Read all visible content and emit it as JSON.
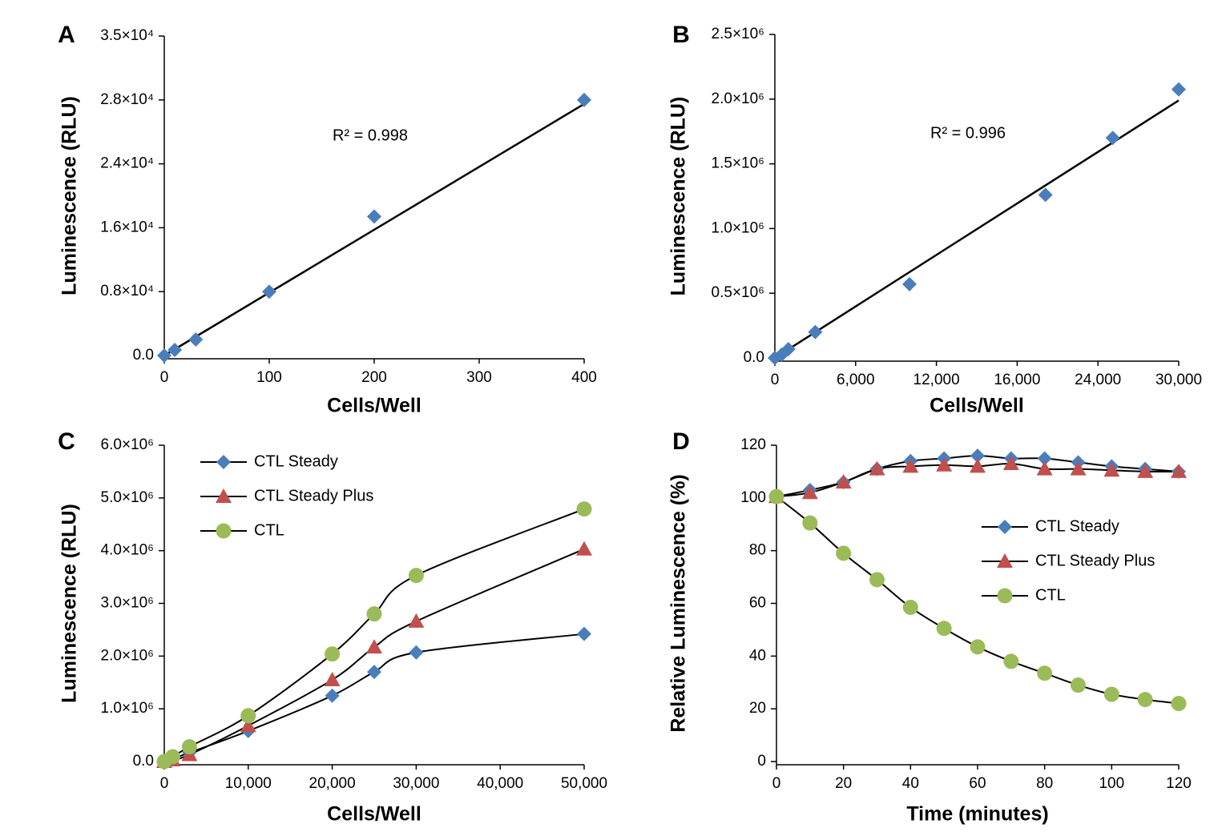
{
  "chart_data": [
    {
      "panel": "A",
      "type": "scatter",
      "xlabel": "Cells/Well",
      "ylabel": "Luminescence (RLU)",
      "annotation": "R² = 0.998",
      "x": [
        0,
        10,
        30,
        100,
        200,
        400
      ],
      "values": [
        0,
        700,
        2000,
        8000,
        17400,
        28000
      ],
      "color": "#4a7ebb",
      "marker": "diamond",
      "trendline": {
        "x": [
          0,
          400
        ],
        "y": [
          0,
          27750
        ],
        "color": "#000000"
      },
      "xlim": [
        0,
        400
      ],
      "xticks": [
        0,
        100,
        200,
        300,
        400
      ],
      "ylim": [
        0,
        35000
      ],
      "yticks": [
        {
          "value": 0,
          "label": "0.0"
        },
        {
          "value": 8000,
          "label": "0.8×10⁴"
        },
        {
          "value": 16000,
          "label": "1.6×10⁴"
        },
        {
          "value": 24000,
          "label": "2.4×10⁴"
        },
        {
          "value": 28000,
          "label": "2.8×10⁴"
        },
        {
          "value": 35000,
          "label": "3.5×10⁴"
        }
      ]
    },
    {
      "panel": "B",
      "type": "scatter",
      "xlabel": "Cells/Well",
      "ylabel": "Luminescence (RLU)",
      "annotation": "R² = 0.996",
      "x": [
        0,
        500,
        1000,
        3000,
        10000,
        18800,
        25100,
        30000
      ],
      "values": [
        0,
        25000,
        68000,
        200000,
        570000,
        1260000,
        1700000,
        2075000
      ],
      "color": "#4a7ebb",
      "marker": "diamond",
      "trendline": {
        "x": [
          0,
          30000
        ],
        "y": [
          0,
          1990000
        ],
        "color": "#000000"
      },
      "xlim": [
        0,
        30000
      ],
      "xticks": [
        0,
        {
          "value": 6000,
          "label": "6,000"
        },
        {
          "value": 12000,
          "label": "12,000"
        },
        {
          "value": 16000,
          "label": "16,000"
        },
        {
          "value": 24000,
          "label": "24,000"
        },
        {
          "value": 30000,
          "label": "30,000"
        }
      ],
      "ylim": [
        0,
        2500000
      ],
      "yticks": [
        {
          "value": 0,
          "label": "0.0"
        },
        {
          "value": 500000,
          "label": "0.5×10⁶"
        },
        {
          "value": 1000000,
          "label": "1.0×10⁶"
        },
        {
          "value": 1500000,
          "label": "1.5×10⁶"
        },
        {
          "value": 2000000,
          "label": "2.0×10⁶"
        },
        {
          "value": 2500000,
          "label": "2.5×10⁶"
        }
      ]
    },
    {
      "panel": "C",
      "type": "line",
      "smooth": true,
      "legend": "upper left",
      "xlabel": "Cells/Well",
      "ylabel": "Luminescence (RLU)",
      "x": [
        0,
        1000,
        3000,
        10000,
        20000,
        25000,
        30000,
        50000
      ],
      "series": [
        {
          "name": "CTL Steady",
          "color": "#4a7ebb",
          "marker": "diamond",
          "values": [
            0,
            50000,
            170000,
            580000,
            1250000,
            1700000,
            2070000,
            2420000
          ]
        },
        {
          "name": "CTL Steady Plus",
          "color": "#c0504d",
          "marker": "triangle",
          "values": [
            0,
            30000,
            130000,
            680000,
            1550000,
            2170000,
            2660000,
            4030000
          ]
        },
        {
          "name": "CTL",
          "color": "#9bbb59",
          "marker": "circle",
          "values": [
            0,
            90000,
            280000,
            870000,
            2040000,
            2800000,
            3530000,
            4790000
          ]
        }
      ],
      "xlim": [
        0,
        50000
      ],
      "xticks": [
        0,
        {
          "value": 10000,
          "label": "10,000"
        },
        {
          "value": 20000,
          "label": "20,000"
        },
        {
          "value": 30000,
          "label": "30,000"
        },
        {
          "value": 40000,
          "label": "40,000"
        },
        {
          "value": 50000,
          "label": "50,000"
        }
      ],
      "ylim": [
        0,
        6000000
      ],
      "yticks": [
        {
          "value": 0,
          "label": "0.0"
        },
        {
          "value": 1000000,
          "label": "1.0×10⁶"
        },
        {
          "value": 2000000,
          "label": "2.0×10⁶"
        },
        {
          "value": 3000000,
          "label": "3.0×10⁶"
        },
        {
          "value": 4000000,
          "label": "4.0×10⁶"
        },
        {
          "value": 5000000,
          "label": "5.0×10⁶"
        },
        {
          "value": 6000000,
          "label": "6.0×10⁶"
        }
      ]
    },
    {
      "panel": "D",
      "type": "line",
      "smooth": true,
      "legend": "center right",
      "xlabel": "Time (minutes)",
      "ylabel": "Relative Luminescence (%)",
      "x": [
        0,
        10,
        20,
        30,
        40,
        50,
        60,
        70,
        80,
        90,
        100,
        110,
        120
      ],
      "series": [
        {
          "name": "CTL Steady",
          "color": "#4a7ebb",
          "marker": "diamond",
          "values": [
            100.5,
            103,
            106,
            111,
            114,
            115,
            116,
            115,
            115,
            113.5,
            112,
            111,
            110
          ]
        },
        {
          "name": "CTL Steady Plus",
          "color": "#c0504d",
          "marker": "triangle",
          "values": [
            100.5,
            102,
            106,
            111,
            112,
            112.5,
            112,
            113,
            111,
            111,
            110.5,
            110,
            110
          ]
        },
        {
          "name": "CTL",
          "color": "#9bbb59",
          "marker": "circle",
          "values": [
            100.5,
            90.5,
            79,
            69,
            58.5,
            50.5,
            43.5,
            38,
            33.5,
            29,
            25.5,
            23.5,
            22
          ]
        }
      ],
      "xlim": [
        0,
        120
      ],
      "xticks": [
        0,
        20,
        40,
        60,
        80,
        100,
        120
      ],
      "ylim": [
        0,
        120
      ],
      "yticks": [
        0,
        20,
        40,
        60,
        80,
        100,
        120
      ]
    }
  ]
}
